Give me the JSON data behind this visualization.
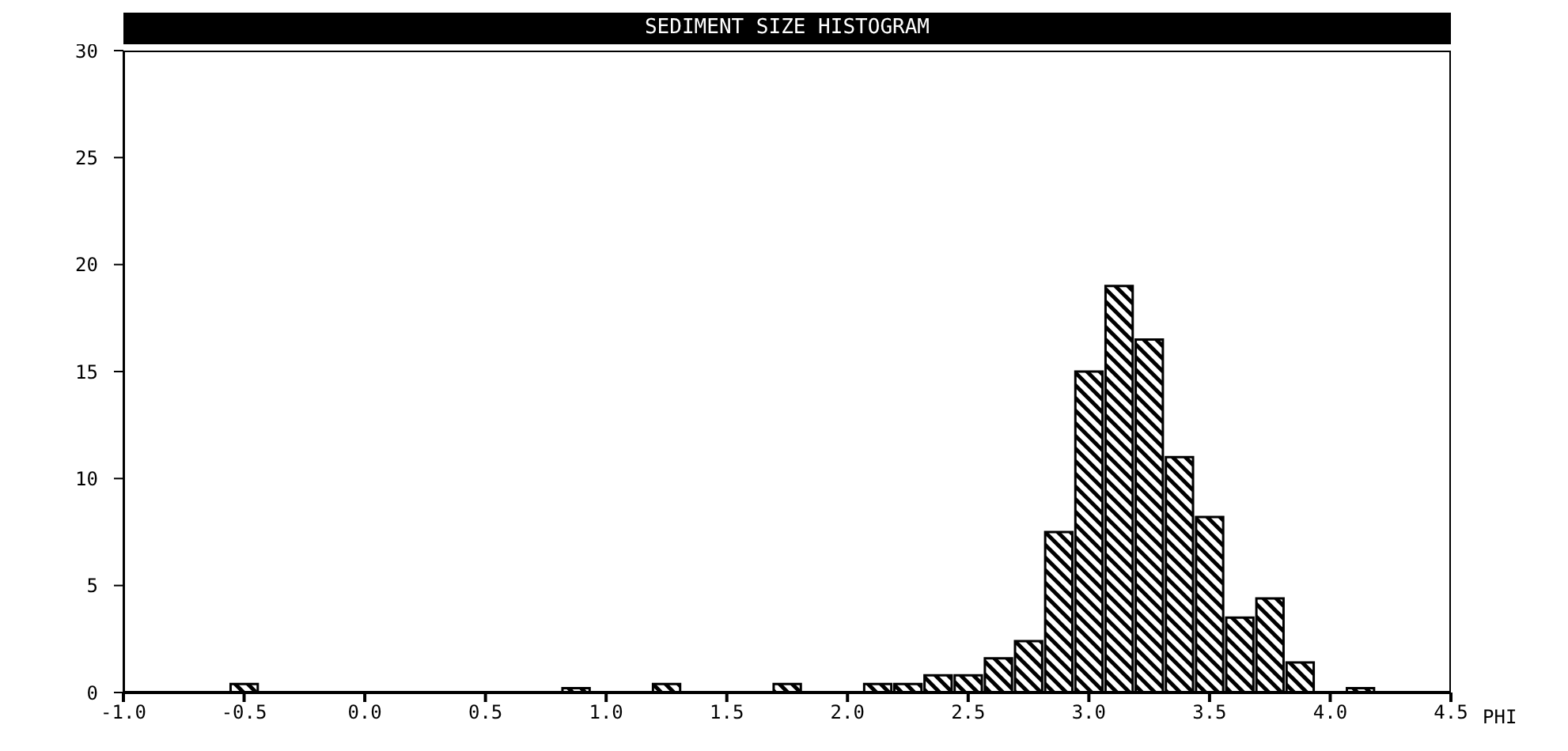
{
  "chart_data": {
    "type": "histogram",
    "title": "SEDIMENT SIZE HISTOGRAM",
    "xlabel": "PHI",
    "color": "#000000",
    "bins": [
      -0.9375,
      -0.8125,
      -0.6875,
      -0.5625,
      -0.4375,
      -0.3125,
      -0.1875,
      -0.0625,
      0.0625,
      0.1875,
      0.3125,
      0.4375,
      0.5625,
      0.6875,
      0.8125,
      0.9375,
      1.0625,
      1.1875,
      1.3125,
      1.4375,
      1.5625,
      1.6875,
      1.8125,
      1.9375,
      2.0625,
      2.1875,
      2.3125,
      2.4375,
      2.5625,
      2.6875,
      2.8125,
      2.9375,
      3.0625,
      3.1875,
      3.3125,
      3.4375,
      3.5625,
      3.6875,
      3.8125,
      3.9375,
      4.0625,
      4.1875,
      4.3125,
      4.4375
    ],
    "values": [
      0,
      0,
      0,
      0.4,
      0,
      0,
      0,
      0,
      0,
      0,
      0,
      0,
      0,
      0,
      0.2,
      0,
      0,
      0.4,
      0,
      0,
      0,
      0.4,
      0,
      0,
      0.4,
      0.4,
      0.8,
      0.8,
      1.6,
      2.4,
      7.5,
      15,
      19,
      16.5,
      11,
      8.2,
      3.5,
      4.4,
      1.4,
      0,
      0.2,
      0,
      0
    ],
    "xlim": [
      -1.0,
      4.5
    ],
    "xticks": [
      {
        "value": -1.0,
        "label": "-1.0"
      },
      {
        "value": -0.5,
        "label": "-0.5"
      },
      {
        "value": 0,
        "label": "0.0"
      },
      {
        "value": 0.5,
        "label": "0.5"
      },
      {
        "value": 1,
        "label": "1.0"
      },
      {
        "value": 1.5,
        "label": "1.5"
      },
      {
        "value": 2,
        "label": "2.0"
      },
      {
        "value": 2.5,
        "label": "2.5"
      },
      {
        "value": 3,
        "label": "3.0"
      },
      {
        "value": 3.5,
        "label": "3.5"
      },
      {
        "value": 4,
        "label": "4.0"
      },
      {
        "value": 4.5,
        "label": "4.5"
      }
    ],
    "ylim": [
      0,
      30
    ],
    "yticks": [
      0,
      5,
      10,
      15,
      20,
      25,
      30
    ]
  }
}
